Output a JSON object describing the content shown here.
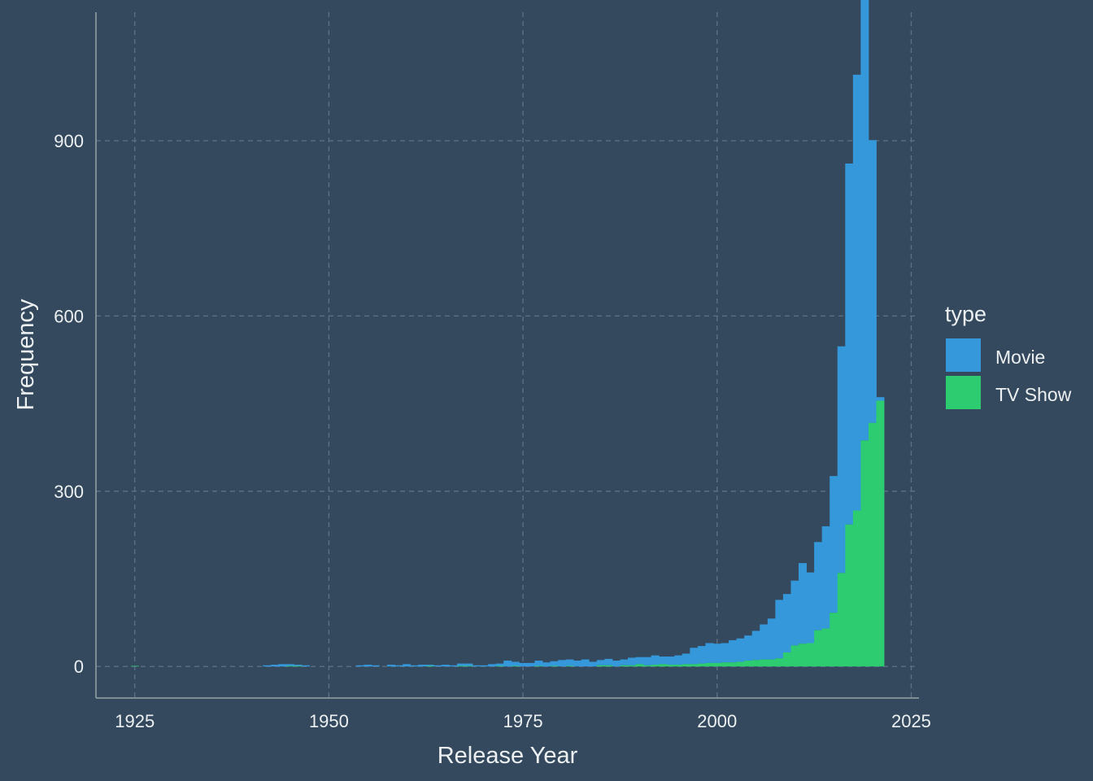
{
  "chart_data": {
    "type": "bar",
    "stacked": true,
    "xlabel": "Release Year",
    "ylabel": "Frequency",
    "xlim": [
      1920,
      2026
    ],
    "ylim": [
      -54,
      1120
    ],
    "x_ticks": [
      1925,
      1950,
      1975,
      2000,
      2025
    ],
    "y_ticks": [
      0,
      300,
      600,
      900
    ],
    "grid": true,
    "bin_width": 1,
    "legend": {
      "title": "type",
      "position": "right"
    },
    "series": [
      {
        "name": "Movie",
        "color": "#3498db",
        "x": [
          1942,
          1943,
          1944,
          1945,
          1946,
          1947,
          1954,
          1955,
          1956,
          1958,
          1959,
          1960,
          1961,
          1962,
          1963,
          1964,
          1965,
          1966,
          1967,
          1968,
          1969,
          1970,
          1971,
          1972,
          1973,
          1974,
          1975,
          1976,
          1977,
          1978,
          1979,
          1980,
          1981,
          1982,
          1983,
          1984,
          1985,
          1986,
          1987,
          1988,
          1989,
          1990,
          1991,
          1992,
          1993,
          1994,
          1995,
          1996,
          1997,
          1998,
          1999,
          2000,
          2001,
          2002,
          2003,
          2004,
          2005,
          2006,
          2007,
          2008,
          2009,
          2010,
          2011,
          2012,
          2013,
          2014,
          2015,
          2016,
          2017,
          2018,
          2019,
          2020,
          2021
        ],
        "values": [
          2,
          3,
          4,
          3,
          2,
          2,
          2,
          3,
          2,
          3,
          2,
          4,
          2,
          3,
          2,
          2,
          3,
          2,
          4,
          4,
          2,
          2,
          4,
          4,
          10,
          7,
          6,
          6,
          9,
          7,
          8,
          11,
          11,
          10,
          12,
          8,
          9,
          11,
          10,
          10,
          13,
          12,
          14,
          16,
          13,
          14,
          16,
          18,
          28,
          30,
          34,
          33,
          33,
          38,
          40,
          43,
          50,
          60,
          70,
          100,
          100,
          111,
          138,
          121,
          151,
          175,
          234,
          388,
          618,
          746,
          779,
          484,
          6
        ]
      },
      {
        "name": "TV Show",
        "color": "#2ecc71",
        "x": [
          1925,
          1945,
          1946,
          1963,
          1967,
          1968,
          1972,
          1974,
          1977,
          1979,
          1981,
          1985,
          1986,
          1988,
          1989,
          1990,
          1991,
          1992,
          1993,
          1994,
          1995,
          1996,
          1997,
          1998,
          1999,
          2000,
          2001,
          2002,
          2003,
          2004,
          2005,
          2006,
          2007,
          2008,
          2009,
          2010,
          2011,
          2012,
          2013,
          2014,
          2015,
          2016,
          2017,
          2018,
          2019,
          2020,
          2021
        ],
        "values": [
          1,
          1,
          1,
          1,
          1,
          1,
          1,
          1,
          1,
          1,
          1,
          2,
          2,
          2,
          2,
          4,
          2,
          3,
          4,
          3,
          3,
          4,
          4,
          5,
          6,
          6,
          7,
          7,
          8,
          10,
          11,
          12,
          12,
          14,
          24,
          36,
          39,
          40,
          62,
          65,
          92,
          160,
          243,
          267,
          387,
          417,
          455
        ]
      }
    ]
  }
}
